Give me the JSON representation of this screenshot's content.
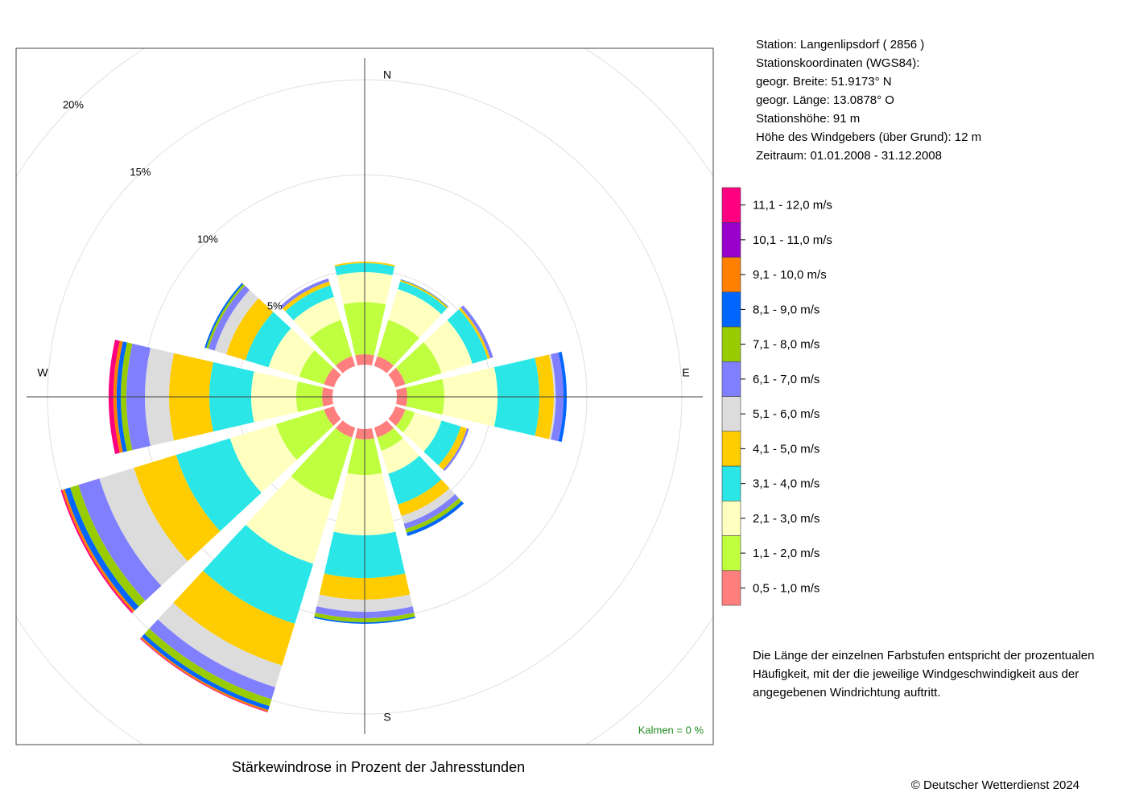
{
  "chart_data": {
    "type": "windrose",
    "title": "Stärkewindrose in Prozent der Jahresstunden",
    "categories": [
      "N",
      null,
      null,
      "E",
      null,
      null,
      "S",
      null,
      null,
      "W",
      null,
      null
    ],
    "rlim": [
      0,
      20
    ],
    "rticks": [
      {
        "value": 5,
        "label": "5%"
      },
      {
        "value": 10,
        "label": "10%"
      },
      {
        "value": 15,
        "label": "15%"
      },
      {
        "value": 20,
        "label": "20%"
      }
    ],
    "grid": true,
    "series": [
      {
        "name": "0,5 - 1,0 m/s",
        "color": "#ff7f7f",
        "values": [
          0.55,
          0.55,
          0.55,
          0.55,
          0.55,
          0.55,
          0.55,
          0.55,
          0.55,
          0.55,
          0.55,
          0.55
        ]
      },
      {
        "name": "1,1 - 2,0 m/s",
        "color": "#bfff3f",
        "values": [
          2.75,
          1.99,
          1.99,
          1.95,
          0.51,
          0.72,
          1.87,
          3.45,
          2.63,
          1.36,
          1.36,
          1.99
        ]
      },
      {
        "name": "2,1 - 3,0 m/s",
        "color": "#ffffbf",
        "values": [
          1.57,
          1.7,
          1.7,
          2.8,
          1.48,
          1.27,
          3.17,
          3.5,
          2.54,
          2.37,
          1.69,
          1.27
        ]
      },
      {
        "name": "3,1 - 4,0 m/s",
        "color": "#2ae6e6",
        "values": [
          0.47,
          0.42,
          0.84,
          2.2,
          1.06,
          1.7,
          2.25,
          3.3,
          2.97,
          2.2,
          1.27,
          0.64
        ]
      },
      {
        "name": "4,1 - 5,0 m/s",
        "color": "#ffcc00",
        "values": [
          0.08,
          0.09,
          0.13,
          0.76,
          0.34,
          0.63,
          1.14,
          2.3,
          2.33,
          2.12,
          1.06,
          0.21
        ]
      },
      {
        "name": "5,1 - 6,0 m/s",
        "color": "#dcdcdc",
        "values": [
          0,
          0,
          0,
          0.1,
          0,
          0.43,
          0.64,
          1.2,
          1.9,
          1.27,
          0.64,
          0
        ]
      },
      {
        "name": "6,1 - 7,0 m/s",
        "color": "#8080ff",
        "values": [
          0,
          0,
          0.17,
          0.41,
          0.11,
          0.29,
          0.34,
          0.66,
          1.15,
          0.98,
          0.34,
          0.17
        ]
      },
      {
        "name": "7,1 - 8,0 m/s",
        "color": "#99cc00",
        "values": [
          0,
          0,
          0,
          0,
          0,
          0.21,
          0.21,
          0.38,
          0.46,
          0.29,
          0.12,
          0
        ]
      },
      {
        "name": "8,1 - 9,0 m/s",
        "color": "#0066ff",
        "values": [
          0,
          0.03,
          0,
          0.17,
          0,
          0.17,
          0.08,
          0.21,
          0.3,
          0.22,
          0.09,
          0
        ]
      },
      {
        "name": "9,1 - 10,0 m/s",
        "color": "#ff8000",
        "values": [
          0,
          0,
          0,
          0,
          0,
          0,
          0,
          0.09,
          0.13,
          0.17,
          0,
          0
        ]
      },
      {
        "name": "10,1 - 11,0 m/s",
        "color": "#9900cc",
        "values": [
          0,
          0,
          0,
          0,
          0,
          0,
          0,
          0,
          0,
          0,
          0,
          0
        ]
      },
      {
        "name": "11,1 - 12,0 m/s",
        "color": "#ff0080",
        "values": [
          0,
          0,
          0,
          0,
          0,
          0,
          0,
          0.04,
          0.08,
          0.25,
          0,
          0
        ]
      }
    ],
    "calm_note": "Kalmen  =  0 %",
    "station_info": [
      "Station:  Langenlipsdorf  ( 2856 )",
      "Stationskoordinaten (WGS84):",
      "geogr. Breite: 51.9173° N",
      "geogr. Länge: 13.0878° O",
      "Stationshöhe: 91 m",
      "Höhe des Windgebers (über Grund): 12 m",
      "Zeitraum: 01.01.2008 - 31.12.2008"
    ],
    "note": [
      "Die Länge der einzelnen Farbstufen entspricht der prozentualen",
      "Häufigkeit, mit der die jeweilige Windgeschwindigkeit aus der",
      "angegebenen Windrichtung auftritt."
    ],
    "copyright": "© Deutscher Wetterdienst  2024"
  }
}
